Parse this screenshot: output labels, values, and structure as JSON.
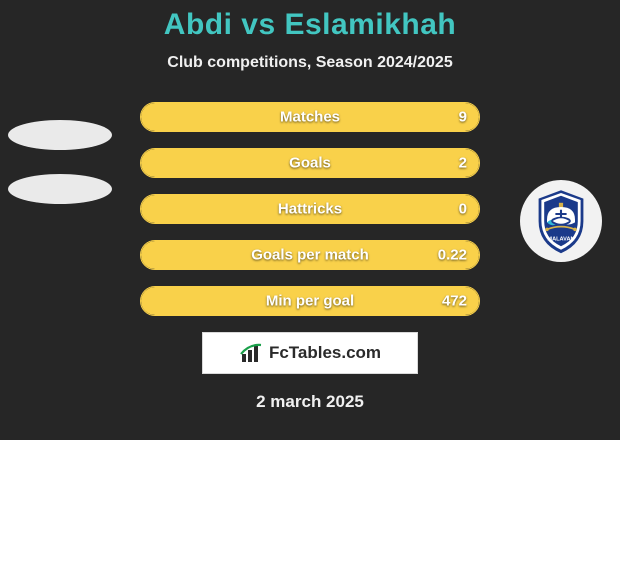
{
  "background_color": "#262626",
  "title": {
    "text": "Abdi vs Eslamikhah",
    "color": "#42c6c1",
    "fontsize": 30
  },
  "subtitle": {
    "text": "Club competitions, Season 2024/2025",
    "color": "#f0f0f0",
    "fontsize": 16
  },
  "left_ellipses": {
    "color": "#eaeaea",
    "count": 2
  },
  "right_logo": {
    "bg_color": "#f2f2f2",
    "primary": "#1b3a8a",
    "accent": "#32b7d6",
    "rope": "#d6b24a"
  },
  "bars": {
    "track_bg": "#262626",
    "border_color": "#f9d14a",
    "fill_color": "#f9d14a",
    "label_color": "#ffffff",
    "value_color": "#ffffff",
    "items": [
      {
        "label": "Matches",
        "value": "9",
        "fill_pct": 100
      },
      {
        "label": "Goals",
        "value": "2",
        "fill_pct": 100
      },
      {
        "label": "Hattricks",
        "value": "0",
        "fill_pct": 100
      },
      {
        "label": "Goals per match",
        "value": "0.22",
        "fill_pct": 100
      },
      {
        "label": "Min per goal",
        "value": "472",
        "fill_pct": 100
      }
    ]
  },
  "brand": {
    "bg": "#ffffff",
    "border": "#d9d9d9",
    "text_color": "#2a2a2a",
    "icon_color": "#2a2a2a",
    "accent": "#1aa04a",
    "prefix": "Fc",
    "suffix": "Tables.com"
  },
  "date": {
    "text": "2 march 2025",
    "color": "#f0f0f0"
  }
}
